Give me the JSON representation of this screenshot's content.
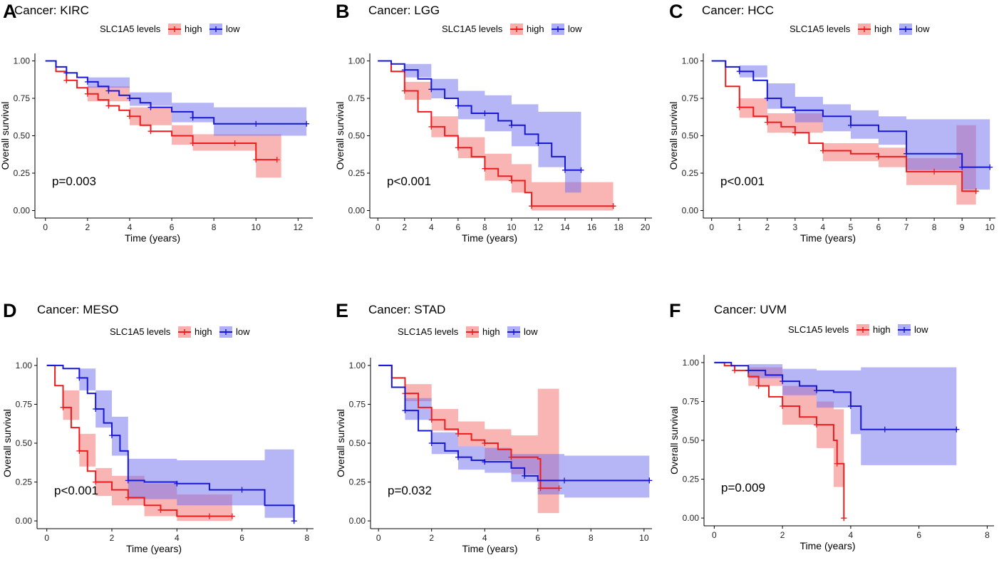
{
  "figure": {
    "legend_title": "SLC1A5 levels",
    "legend_high": "high",
    "legend_low": "low",
    "colors": {
      "high_line": "#ee1c1c",
      "high_band": "#f46a6a",
      "low_line": "#1717d6",
      "low_band": "#6d6df0",
      "axis": "#000000"
    }
  },
  "chart_data": [
    {
      "panel_label": "A",
      "type": "line",
      "title": "Cancer: KIRC",
      "xlabel": "Time (years)",
      "ylabel": "Overall survival",
      "xlim": [
        -0.5,
        12.7
      ],
      "ylim": [
        -0.05,
        1.05
      ],
      "xticks": [
        0,
        2,
        4,
        6,
        8,
        10,
        12
      ],
      "yticks": [
        0.0,
        0.25,
        0.5,
        0.75,
        1.0
      ],
      "ytick_labels": [
        "0.00",
        "0.25",
        "0.50",
        "0.75",
        "1.00"
      ],
      "pvalue": "p=0.003",
      "series": [
        {
          "name": "high",
          "x": [
            0,
            0.5,
            1,
            1.5,
            2,
            2.5,
            3,
            3.5,
            4,
            4.5,
            5,
            6,
            7,
            8,
            9,
            9.8,
            10,
            11
          ],
          "y": [
            1.0,
            0.93,
            0.87,
            0.82,
            0.78,
            0.74,
            0.7,
            0.67,
            0.63,
            0.57,
            0.53,
            0.5,
            0.45,
            0.45,
            0.45,
            0.45,
            0.34,
            0.34
          ],
          "band_x": [
            0,
            2,
            4,
            6,
            7,
            9.8,
            10,
            11.2
          ],
          "band_lo": [
            1.0,
            0.73,
            0.57,
            0.44,
            0.4,
            0.4,
            0.22,
            0.22
          ],
          "band_hi": [
            1.0,
            0.83,
            0.69,
            0.57,
            0.51,
            0.51,
            0.51,
            0.51
          ]
        },
        {
          "name": "low",
          "x": [
            0,
            0.5,
            1,
            1.5,
            2,
            2.5,
            3,
            3.5,
            4,
            4.5,
            5,
            6,
            7,
            8,
            10,
            12.4
          ],
          "y": [
            1.0,
            0.96,
            0.92,
            0.89,
            0.86,
            0.83,
            0.8,
            0.77,
            0.75,
            0.72,
            0.69,
            0.66,
            0.62,
            0.58,
            0.58,
            0.58
          ],
          "band_x": [
            0,
            2,
            4,
            6,
            8,
            12.4
          ],
          "band_lo": [
            1.0,
            0.82,
            0.7,
            0.59,
            0.5,
            0.5
          ],
          "band_hi": [
            1.0,
            0.89,
            0.79,
            0.72,
            0.69,
            0.69
          ]
        }
      ]
    },
    {
      "panel_label": "B",
      "type": "line",
      "title": "Cancer: LGG",
      "xlabel": "Time (years)",
      "ylabel": "Overall survival",
      "xlim": [
        -0.6,
        20.5
      ],
      "ylim": [
        -0.05,
        1.05
      ],
      "xticks": [
        0,
        2,
        4,
        6,
        8,
        10,
        12,
        14,
        16,
        18,
        20
      ],
      "yticks": [
        0.0,
        0.25,
        0.5,
        0.75,
        1.0
      ],
      "ytick_labels": [
        "0.00",
        "0.25",
        "0.50",
        "0.75",
        "1.00"
      ],
      "pvalue": "p<0.001",
      "series": [
        {
          "name": "high",
          "x": [
            0,
            1,
            2,
            3,
            4,
            5,
            6,
            7,
            8,
            9,
            10,
            11,
            11.5,
            12,
            17.6
          ],
          "y": [
            1.0,
            0.93,
            0.8,
            0.66,
            0.56,
            0.5,
            0.42,
            0.36,
            0.28,
            0.23,
            0.2,
            0.12,
            0.03,
            0.03,
            0.03
          ],
          "band_x": [
            0,
            2,
            4,
            6,
            8,
            10,
            11.5,
            17.6
          ],
          "band_lo": [
            1.0,
            0.74,
            0.49,
            0.35,
            0.2,
            0.12,
            0.0,
            0.0
          ],
          "band_hi": [
            1.0,
            0.86,
            0.63,
            0.49,
            0.38,
            0.31,
            0.19,
            0.19
          ]
        },
        {
          "name": "low",
          "x": [
            0,
            1,
            2,
            3,
            4,
            5,
            6,
            7,
            8,
            9,
            10,
            11,
            12,
            13,
            14,
            15.2
          ],
          "y": [
            1.0,
            0.98,
            0.94,
            0.88,
            0.81,
            0.75,
            0.7,
            0.65,
            0.65,
            0.6,
            0.57,
            0.51,
            0.45,
            0.36,
            0.27,
            0.27
          ],
          "band_x": [
            0,
            2,
            4,
            6,
            8,
            10,
            12,
            14,
            15.2
          ],
          "band_lo": [
            1.0,
            0.89,
            0.75,
            0.61,
            0.53,
            0.43,
            0.29,
            0.12,
            0.12
          ],
          "band_hi": [
            1.0,
            0.98,
            0.88,
            0.8,
            0.77,
            0.71,
            0.66,
            0.66,
            0.66
          ]
        }
      ]
    },
    {
      "panel_label": "C",
      "type": "line",
      "title": "Cancer: HCC",
      "xlabel": "Time (years)",
      "ylabel": "Overall survival",
      "xlim": [
        -0.3,
        10.2
      ],
      "ylim": [
        -0.05,
        1.05
      ],
      "xticks": [
        0,
        1,
        2,
        3,
        4,
        5,
        6,
        7,
        8,
        9,
        10
      ],
      "yticks": [
        0.0,
        0.25,
        0.5,
        0.75,
        1.0
      ],
      "ytick_labels": [
        "0.00",
        "0.25",
        "0.50",
        "0.75",
        "1.00"
      ],
      "pvalue": "p<0.001",
      "series": [
        {
          "name": "high",
          "x": [
            0,
            0.5,
            1,
            1.5,
            2,
            2.5,
            3,
            3.5,
            4,
            5,
            6,
            7,
            8,
            9,
            9.5
          ],
          "y": [
            1.0,
            0.83,
            0.69,
            0.63,
            0.59,
            0.56,
            0.52,
            0.45,
            0.4,
            0.38,
            0.36,
            0.26,
            0.26,
            0.13,
            0.13
          ],
          "band_x": [
            0,
            1,
            2,
            4,
            6,
            7,
            8.8,
            9.5
          ],
          "band_lo": [
            1.0,
            0.62,
            0.52,
            0.33,
            0.29,
            0.17,
            0.04,
            0.04
          ],
          "band_hi": [
            1.0,
            0.75,
            0.65,
            0.45,
            0.42,
            0.35,
            0.57,
            0.57
          ]
        },
        {
          "name": "low",
          "x": [
            0,
            0.5,
            1,
            1.5,
            2,
            2.5,
            3,
            4,
            5,
            6,
            7,
            8,
            9,
            10
          ],
          "y": [
            1.0,
            0.96,
            0.93,
            0.87,
            0.75,
            0.69,
            0.67,
            0.63,
            0.57,
            0.53,
            0.38,
            0.38,
            0.29,
            0.29
          ],
          "band_x": [
            0,
            1,
            2,
            3,
            4,
            5,
            6,
            7,
            9,
            10
          ],
          "band_lo": [
            1.0,
            0.89,
            0.68,
            0.59,
            0.53,
            0.48,
            0.44,
            0.27,
            0.14,
            0.14
          ],
          "band_hi": [
            1.0,
            0.97,
            0.85,
            0.76,
            0.71,
            0.67,
            0.63,
            0.61,
            0.61,
            0.61
          ]
        }
      ]
    },
    {
      "panel_label": "D",
      "type": "line",
      "title": "Cancer: MESO",
      "xlabel": "Time (years)",
      "ylabel": "Overall survival",
      "xlim": [
        -0.3,
        8.2
      ],
      "ylim": [
        -0.05,
        1.05
      ],
      "xticks": [
        0,
        2,
        4,
        6,
        8
      ],
      "yticks": [
        0.0,
        0.25,
        0.5,
        0.75,
        1.0
      ],
      "ytick_labels": [
        "0.00",
        "0.25",
        "0.50",
        "0.75",
        "1.00"
      ],
      "pvalue": "p<0.001",
      "series": [
        {
          "name": "high",
          "x": [
            0,
            0.25,
            0.5,
            0.75,
            1,
            1.25,
            1.5,
            2,
            2.5,
            3,
            3.5,
            4,
            5,
            5.7
          ],
          "y": [
            1.0,
            0.87,
            0.73,
            0.6,
            0.45,
            0.32,
            0.25,
            0.2,
            0.15,
            0.1,
            0.07,
            0.03,
            0.03,
            0.03
          ],
          "band_x": [
            0,
            0.5,
            1,
            1.5,
            2,
            3,
            4,
            5.7
          ],
          "band_lo": [
            1.0,
            0.65,
            0.35,
            0.16,
            0.1,
            0.03,
            0.0,
            0.0
          ],
          "band_hi": [
            1.0,
            0.84,
            0.56,
            0.34,
            0.29,
            0.24,
            0.17,
            0.17
          ]
        },
        {
          "name": "low",
          "x": [
            0,
            0.5,
            1,
            1.25,
            1.5,
            1.75,
            2,
            2.25,
            2.5,
            3,
            4,
            5,
            6,
            6.7,
            7.6
          ],
          "y": [
            1.0,
            0.98,
            0.92,
            0.82,
            0.72,
            0.63,
            0.55,
            0.45,
            0.26,
            0.25,
            0.24,
            0.2,
            0.2,
            0.1,
            0.0
          ],
          "band_x": [
            0,
            1,
            1.5,
            2,
            2.5,
            4,
            6.7,
            7.6
          ],
          "band_lo": [
            1.0,
            0.84,
            0.6,
            0.42,
            0.14,
            0.1,
            0.02,
            0.02
          ],
          "band_hi": [
            1.0,
            0.98,
            0.84,
            0.67,
            0.4,
            0.39,
            0.46,
            0.46
          ]
        }
      ]
    },
    {
      "panel_label": "E",
      "type": "line",
      "title": "Cancer: STAD",
      "xlabel": "Time (years)",
      "ylabel": "Overall survival",
      "xlim": [
        -0.3,
        10.3
      ],
      "ylim": [
        -0.05,
        1.05
      ],
      "xticks": [
        0,
        2,
        4,
        6,
        8,
        10
      ],
      "yticks": [
        0.0,
        0.25,
        0.5,
        0.75,
        1.0
      ],
      "ytick_labels": [
        "0.00",
        "0.25",
        "0.50",
        "0.75",
        "1.00"
      ],
      "pvalue": "p=0.032",
      "series": [
        {
          "name": "high",
          "x": [
            0,
            0.5,
            1,
            1.5,
            2,
            2.5,
            3,
            3.5,
            4,
            4.5,
            5,
            6,
            6.1,
            6.8
          ],
          "y": [
            1.0,
            0.92,
            0.82,
            0.73,
            0.65,
            0.59,
            0.56,
            0.52,
            0.5,
            0.46,
            0.41,
            0.4,
            0.21,
            0.21
          ],
          "band_x": [
            0,
            1,
            2,
            3,
            4,
            5,
            6,
            6.8
          ],
          "band_lo": [
            1.0,
            0.77,
            0.58,
            0.48,
            0.39,
            0.3,
            0.05,
            0.05
          ],
          "band_hi": [
            1.0,
            0.88,
            0.72,
            0.64,
            0.59,
            0.55,
            0.85,
            0.85
          ]
        },
        {
          "name": "low",
          "x": [
            0,
            0.5,
            1,
            1.5,
            2,
            2.5,
            3,
            3.5,
            4,
            5,
            5.5,
            6,
            7,
            8,
            10.2
          ],
          "y": [
            1.0,
            0.86,
            0.71,
            0.58,
            0.5,
            0.45,
            0.41,
            0.39,
            0.38,
            0.34,
            0.29,
            0.26,
            0.26,
            0.26,
            0.26
          ],
          "band_x": [
            0,
            1,
            2,
            3,
            4,
            5,
            6,
            7,
            10.2
          ],
          "band_lo": [
            1.0,
            0.65,
            0.43,
            0.33,
            0.31,
            0.25,
            0.17,
            0.15,
            0.15
          ],
          "band_hi": [
            1.0,
            0.79,
            0.57,
            0.48,
            0.47,
            0.43,
            0.43,
            0.42,
            0.42
          ]
        }
      ]
    },
    {
      "panel_label": "F",
      "type": "line",
      "title": "Cancer: UVM",
      "xlabel": "Time (years)",
      "ylabel": "Overall survival",
      "xlim": [
        -0.3,
        8.2
      ],
      "ylim": [
        -0.05,
        1.05
      ],
      "xticks": [
        0,
        2,
        4,
        6,
        8
      ],
      "yticks": [
        0.0,
        0.25,
        0.5,
        0.75,
        1.0
      ],
      "ytick_labels": [
        "0.00",
        "0.25",
        "0.50",
        "0.75",
        "1.00"
      ],
      "pvalue": "p=0.009",
      "series": [
        {
          "name": "high",
          "x": [
            0,
            0.3,
            0.6,
            1,
            1.3,
            1.6,
            2,
            2.5,
            3,
            3.5,
            3.6,
            3.75,
            3.8
          ],
          "y": [
            1.0,
            0.98,
            0.95,
            0.91,
            0.85,
            0.78,
            0.72,
            0.65,
            0.6,
            0.5,
            0.35,
            0.35,
            0.0
          ],
          "band_x": [
            0,
            1,
            2,
            3,
            3.5,
            3.8
          ],
          "band_lo": [
            1.0,
            0.85,
            0.6,
            0.45,
            0.2,
            0.2
          ],
          "band_hi": [
            1.0,
            0.97,
            0.85,
            0.75,
            0.7,
            0.7
          ]
        },
        {
          "name": "low",
          "x": [
            0,
            0.5,
            1,
            1.5,
            2,
            2.5,
            3,
            3.5,
            4,
            4.3,
            5,
            6,
            7.1
          ],
          "y": [
            1.0,
            0.98,
            0.95,
            0.92,
            0.88,
            0.85,
            0.82,
            0.81,
            0.72,
            0.57,
            0.57,
            0.57,
            0.57
          ],
          "band_x": [
            0,
            1,
            2,
            3,
            4,
            4.3,
            7.1
          ],
          "band_lo": [
            1.0,
            0.9,
            0.79,
            0.71,
            0.54,
            0.34,
            0.34
          ],
          "band_hi": [
            1.0,
            0.99,
            0.96,
            0.95,
            0.95,
            0.97,
            0.97
          ]
        }
      ]
    }
  ]
}
